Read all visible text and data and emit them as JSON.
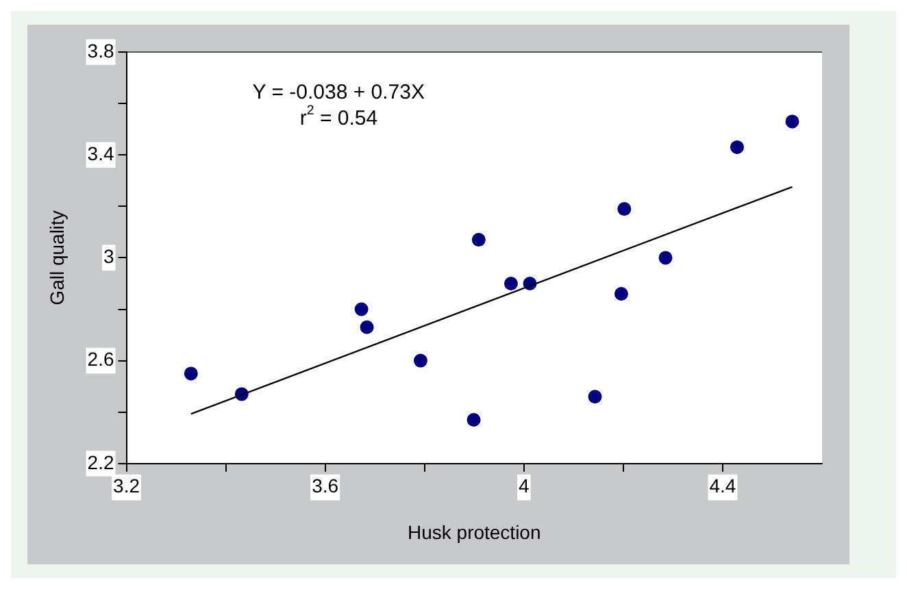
{
  "chart_data": {
    "type": "scatter",
    "xlabel": "Husk protection",
    "ylabel": "Gall quality",
    "annotations": [
      "Y = -0.038 + 0.73X",
      "r$^{2}$ = 0.54"
    ],
    "series": [
      {
        "marker": "circle",
        "color": "#000080",
        "x": [
          3.33,
          3.432,
          3.673,
          3.684,
          3.792,
          3.899,
          3.909,
          3.974,
          4.012,
          4.143,
          4.196,
          4.202,
          4.285,
          4.429,
          4.54
        ],
        "values": [
          2.55,
          2.47,
          2.8,
          2.73,
          2.6,
          2.37,
          3.07,
          2.9,
          2.9,
          2.46,
          2.86,
          3.19,
          3.0,
          3.43,
          3.53
        ]
      },
      {
        "type": "line",
        "marker": "none",
        "color": "#000000",
        "x": [
          3.33,
          4.54
        ],
        "values": [
          2.393,
          3.276
        ]
      }
    ],
    "xlim": [
      3.2,
      4.6
    ],
    "ylim": [
      2.2,
      3.8
    ],
    "xticks": [
      3.2,
      {
        "value": 3.4,
        "label": null
      },
      3.6,
      {
        "value": 3.8,
        "label": null
      },
      4,
      {
        "value": 4.2,
        "label": null
      },
      4.4
    ],
    "yticks": [
      2.2,
      {
        "value": 2.4,
        "label": null
      },
      2.6,
      {
        "value": 2.8,
        "label": null
      },
      3,
      {
        "value": 3.2,
        "label": null
      },
      3.4,
      {
        "value": 3.6,
        "label": null
      },
      3.8
    ],
    "grid": false,
    "legend": false,
    "line_style": "solid"
  }
}
